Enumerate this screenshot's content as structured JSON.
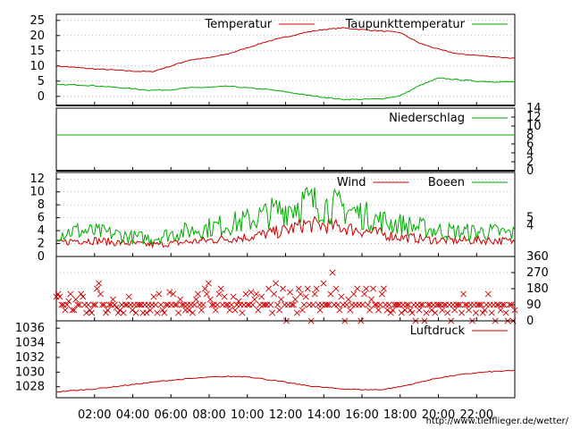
{
  "credit": "http://www.tiefflieger.de/wetter/",
  "x_axis": {
    "tick_labels": [
      "02:00",
      "04:00",
      "06:00",
      "08:00",
      "10:00",
      "12:00",
      "14:00",
      "16:00",
      "18:00",
      "20:00",
      "22:00"
    ],
    "hour_range": [
      0,
      24
    ]
  },
  "colors": {
    "red": "#cc0000",
    "green": "#00aa00",
    "grid": "#888888",
    "frame": "#000000"
  },
  "chart_data": [
    {
      "type": "line",
      "id": "temperature",
      "x": [
        0,
        1,
        2,
        3,
        4,
        5,
        6,
        7,
        8,
        9,
        10,
        11,
        12,
        13,
        14,
        15,
        16,
        17,
        18,
        19,
        20,
        21,
        22,
        23,
        24
      ],
      "series": [
        {
          "name": "Temperatur",
          "color": "#cc0000",
          "values": [
            10,
            9.5,
            9,
            8.7,
            8.3,
            8.1,
            10,
            12,
            12.7,
            14,
            16,
            18,
            19.5,
            21,
            22,
            22.5,
            22,
            21.5,
            21,
            17.5,
            15.5,
            14,
            13.5,
            13,
            12.5
          ]
        },
        {
          "name": "Taupunkttemperatur",
          "color": "#00aa00",
          "values": [
            3.8,
            3.8,
            3.5,
            3,
            2.5,
            2,
            2.2,
            2.8,
            3,
            3.3,
            2.8,
            2.3,
            1.5,
            0.5,
            -0.3,
            -1,
            -1,
            -0.8,
            0.2,
            3.5,
            6,
            5.5,
            5,
            4.8,
            4.8
          ]
        }
      ],
      "y_ticks": [
        0,
        5,
        10,
        15,
        20,
        25
      ],
      "ylim": [
        -3,
        27
      ],
      "grid": true,
      "legend": "top-right"
    },
    {
      "type": "line",
      "id": "precipitation",
      "x": [
        0,
        24
      ],
      "series": [
        {
          "name": "Niederschlag",
          "color": "#00aa00",
          "values": [
            8,
            8
          ]
        }
      ],
      "y_ticks": [
        0,
        2,
        4,
        6,
        8,
        10,
        12,
        14
      ],
      "ylim": [
        0,
        14
      ],
      "axis_side": "right",
      "grid": false,
      "legend": "top-right"
    },
    {
      "type": "line",
      "id": "wind",
      "x": [
        0,
        1,
        2,
        3,
        4,
        5,
        6,
        7,
        8,
        9,
        10,
        11,
        12,
        13,
        14,
        15,
        16,
        17,
        18,
        19,
        20,
        21,
        22,
        23,
        24
      ],
      "series": [
        {
          "name": "Wind",
          "color": "#cc0000",
          "values": [
            2,
            2.5,
            2.5,
            2.2,
            2,
            1.8,
            2,
            2.3,
            2.5,
            2.8,
            3,
            3.5,
            4,
            5,
            4.8,
            4.5,
            4,
            3.5,
            3,
            2.8,
            2.5,
            2.5,
            2.5,
            2.5,
            2.3
          ]
        },
        {
          "name": "Boeen",
          "color": "#00aa00",
          "values": [
            3.5,
            4,
            3.8,
            3.5,
            3,
            2.8,
            3.5,
            4,
            4.5,
            5,
            5.5,
            6.5,
            7.5,
            8.5,
            8,
            7.5,
            6.5,
            5.5,
            5,
            4.5,
            4,
            3.8,
            3.8,
            3.8,
            3.5
          ]
        }
      ],
      "y_ticks": [
        0,
        2,
        4,
        6,
        8,
        10,
        12
      ],
      "ylim": [
        0,
        13
      ],
      "y2_ticks": [
        4,
        5
      ],
      "grid": true,
      "legend": "top-right"
    },
    {
      "type": "scatter",
      "id": "wind-direction",
      "marker": "cross",
      "color": "#cc0000",
      "sampling_interval_min": 10,
      "values": [
        135,
        150,
        135,
        90,
        90,
        60,
        90,
        110,
        150,
        60,
        60,
        120,
        90,
        90,
        150,
        135,
        90,
        45,
        90,
        60,
        45,
        90,
        90,
        180,
        210,
        150,
        90,
        90,
        45,
        60,
        90,
        90,
        120,
        90,
        75,
        45,
        60,
        90,
        45,
        90,
        90,
        135,
        90,
        60,
        90,
        45,
        90,
        90,
        90,
        45,
        90,
        45,
        90,
        60,
        90,
        135,
        90,
        45,
        150,
        90,
        60,
        45,
        90,
        90,
        160,
        90,
        150,
        90,
        90,
        45,
        120,
        90,
        90,
        60,
        90,
        60,
        90,
        45,
        90,
        120,
        150,
        90,
        60,
        90,
        180,
        150,
        210,
        120,
        90,
        90,
        60,
        90,
        150,
        180,
        90,
        135,
        90,
        90,
        60,
        90,
        135,
        60,
        90,
        110,
        90,
        45,
        90,
        150,
        90,
        90,
        160,
        90,
        120,
        150,
        60,
        90,
        135,
        90,
        90,
        90,
        180,
        90,
        45,
        150,
        210,
        90,
        60,
        120,
        180,
        90,
        0,
        90,
        160,
        90,
        90,
        120,
        45,
        180,
        150,
        60,
        90,
        135,
        180,
        90,
        0,
        90,
        150,
        180,
        90,
        60,
        90,
        210,
        90,
        90,
        90,
        150,
        270,
        90,
        180,
        90,
        60,
        135,
        90,
        0,
        90,
        120,
        60,
        90,
        150,
        90,
        180,
        90,
        0,
        90,
        150,
        180,
        90,
        60,
        120,
        180,
        90,
        90,
        60,
        90,
        150,
        180,
        90,
        60,
        90,
        45,
        60,
        90,
        90,
        90,
        90,
        45,
        90,
        60,
        90,
        90,
        60,
        45,
        90,
        0,
        90,
        60,
        90,
        90,
        0,
        45,
        90,
        90,
        60,
        90,
        45,
        90,
        90,
        90,
        60,
        90,
        90,
        45,
        90,
        0,
        90,
        60,
        90,
        90,
        90,
        45,
        150,
        90,
        90,
        60,
        90,
        0,
        90,
        45,
        90,
        90,
        90,
        45,
        60,
        90,
        150,
        90,
        45,
        90,
        0,
        90,
        90,
        60,
        90,
        90,
        45,
        0,
        90,
        90,
        0,
        60
      ],
      "y_ticks": [
        0,
        90,
        180,
        270,
        360
      ],
      "ylim": [
        0,
        360
      ],
      "axis_side": "right",
      "grid": true
    },
    {
      "type": "line",
      "id": "pressure",
      "x": [
        0,
        1,
        2,
        3,
        4,
        5,
        6,
        7,
        8,
        9,
        10,
        11,
        12,
        13,
        14,
        15,
        16,
        17,
        18,
        19,
        20,
        21,
        22,
        23,
        24
      ],
      "series": [
        {
          "name": "Luftdruck",
          "color": "#cc0000",
          "values": [
            1027.3,
            1027.5,
            1027.7,
            1028,
            1028.3,
            1028.6,
            1028.9,
            1029.1,
            1029.3,
            1029.4,
            1029.4,
            1029,
            1028.6,
            1028.2,
            1027.9,
            1027.7,
            1027.6,
            1027.6,
            1028,
            1028.6,
            1029.2,
            1029.6,
            1029.9,
            1030.1,
            1030.2
          ]
        }
      ],
      "y_ticks": [
        1028,
        1030,
        1032,
        1034,
        1036
      ],
      "ylim": [
        1026.5,
        1037
      ],
      "grid": false,
      "legend": "top-right"
    }
  ]
}
